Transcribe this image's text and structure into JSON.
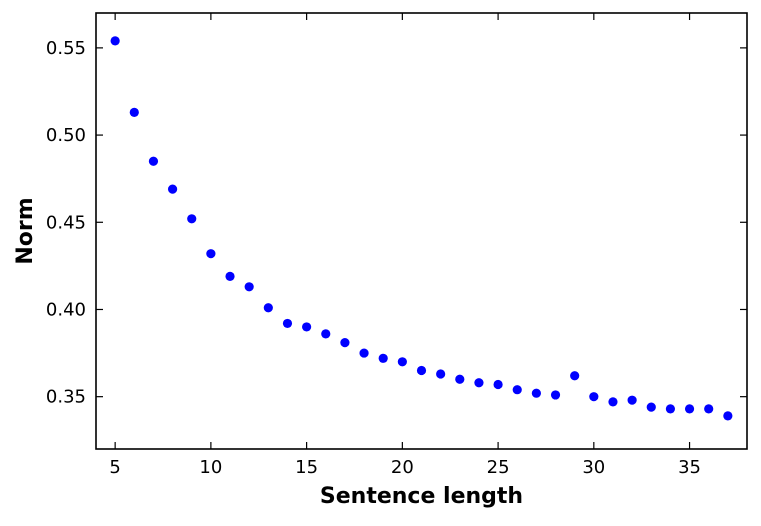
{
  "chart_data": {
    "type": "scatter",
    "xlabel": "Sentence length",
    "ylabel": "Norm",
    "xlim": [
      4,
      38
    ],
    "ylim": [
      0.32,
      0.57
    ],
    "xticks": [
      5,
      10,
      15,
      20,
      25,
      30,
      35
    ],
    "xtick_labels": [
      "5",
      "10",
      "15",
      "20",
      "25",
      "30",
      "35"
    ],
    "yticks": [
      0.35,
      0.4,
      0.45,
      0.5,
      0.55
    ],
    "ytick_labels": [
      "0.35",
      "0.40",
      "0.45",
      "0.50",
      "0.55"
    ],
    "grid": false,
    "marker_color": "#0000ff",
    "points": [
      {
        "x": 5,
        "y": 0.554
      },
      {
        "x": 6,
        "y": 0.513
      },
      {
        "x": 7,
        "y": 0.485
      },
      {
        "x": 8,
        "y": 0.469
      },
      {
        "x": 9,
        "y": 0.452
      },
      {
        "x": 10,
        "y": 0.432
      },
      {
        "x": 11,
        "y": 0.419
      },
      {
        "x": 12,
        "y": 0.413
      },
      {
        "x": 13,
        "y": 0.401
      },
      {
        "x": 14,
        "y": 0.392
      },
      {
        "x": 15,
        "y": 0.39
      },
      {
        "x": 16,
        "y": 0.386
      },
      {
        "x": 17,
        "y": 0.381
      },
      {
        "x": 18,
        "y": 0.375
      },
      {
        "x": 19,
        "y": 0.372
      },
      {
        "x": 20,
        "y": 0.37
      },
      {
        "x": 21,
        "y": 0.365
      },
      {
        "x": 22,
        "y": 0.363
      },
      {
        "x": 23,
        "y": 0.36
      },
      {
        "x": 24,
        "y": 0.358
      },
      {
        "x": 25,
        "y": 0.357
      },
      {
        "x": 26,
        "y": 0.354
      },
      {
        "x": 27,
        "y": 0.352
      },
      {
        "x": 28,
        "y": 0.351
      },
      {
        "x": 29,
        "y": 0.362
      },
      {
        "x": 30,
        "y": 0.35
      },
      {
        "x": 31,
        "y": 0.347
      },
      {
        "x": 32,
        "y": 0.348
      },
      {
        "x": 33,
        "y": 0.344
      },
      {
        "x": 34,
        "y": 0.343
      },
      {
        "x": 35,
        "y": 0.343
      },
      {
        "x": 36,
        "y": 0.343
      },
      {
        "x": 37,
        "y": 0.339
      }
    ]
  }
}
